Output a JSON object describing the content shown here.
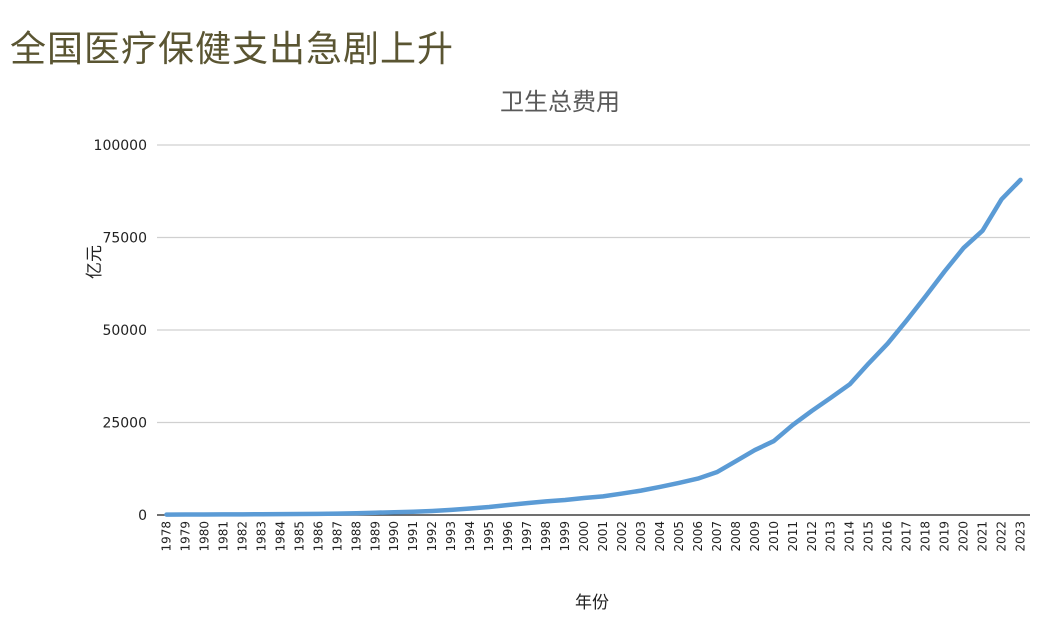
{
  "page": {
    "heading": "全国医疗保健支出急剧上升"
  },
  "chart_data": {
    "type": "line",
    "title": "卫生总费用",
    "xlabel": "年份",
    "ylabel": "亿元",
    "ylim": [
      0,
      100000
    ],
    "y_ticks": [
      0,
      25000,
      50000,
      75000,
      100000
    ],
    "y_tick_labels": [
      "0",
      "25000",
      "50000",
      "75000",
      "100000"
    ],
    "grid": true,
    "legend": "none",
    "categories": [
      "1978",
      "1979",
      "1980",
      "1981",
      "1982",
      "1983",
      "1984",
      "1985",
      "1986",
      "1987",
      "1988",
      "1989",
      "1990",
      "1991",
      "1992",
      "1993",
      "1994",
      "1995",
      "1996",
      "1997",
      "1998",
      "1999",
      "2000",
      "2001",
      "2002",
      "2003",
      "2004",
      "2005",
      "2006",
      "2007",
      "2008",
      "2009",
      "2010",
      "2011",
      "2012",
      "2013",
      "2014",
      "2015",
      "2016",
      "2017",
      "2018",
      "2019",
      "2020",
      "2021",
      "2022",
      "2023"
    ],
    "series": [
      {
        "color": "#5b9bd5",
        "values": [
          110,
          126,
          143,
          160,
          177,
          207,
          242,
          279,
          315,
          379,
          488,
          615,
          747,
          893,
          1097,
          1378,
          1762,
          2155,
          2709,
          3197,
          3679,
          4048,
          4587,
          5026,
          5790,
          6584,
          7590,
          8660,
          9843,
          11574,
          14535,
          17542,
          19980,
          24346,
          28119,
          31669,
          35312,
          40975,
          46345,
          52598,
          59122,
          65841,
          72175,
          76845,
          85327,
          90576
        ]
      }
    ]
  }
}
